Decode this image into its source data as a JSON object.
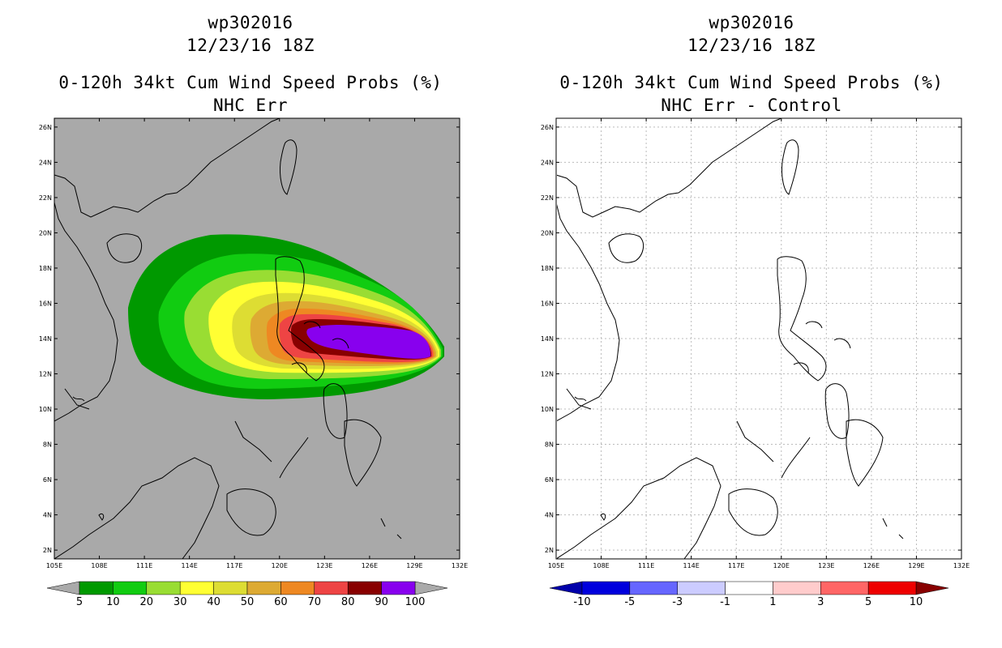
{
  "left": {
    "title_storm": "wp302016",
    "title_time": "12/23/16 18Z",
    "title_product": "0-120h 34kt Cum Wind Speed Probs (%)",
    "title_variant": "NHC Err",
    "colorbar": {
      "labels": [
        "5",
        "10",
        "20",
        "30",
        "40",
        "50",
        "60",
        "70",
        "80",
        "90",
        "100"
      ],
      "colors": [
        "#009900",
        "#11cc11",
        "#99dd33",
        "#ffff33",
        "#dddd33",
        "#ddaa33",
        "#ee8822",
        "#ee4444",
        "#880000",
        "#8800ee"
      ],
      "under_color": "#aaaaaa",
      "over_color": "#aaaaaa"
    },
    "background": "#a9a9a9"
  },
  "right": {
    "title_storm": "wp302016",
    "title_time": "12/23/16 18Z",
    "title_product": "0-120h 34kt Cum Wind Speed Probs (%)",
    "title_variant": "NHC Err - Control",
    "colorbar": {
      "labels": [
        "-10",
        "-5",
        "-3",
        "-1",
        "1",
        "3",
        "5",
        "10"
      ],
      "colors": [
        "#0000dd",
        "#6666ff",
        "#ccccff",
        "#ffffff",
        "#ffcccc",
        "#ff6666",
        "#ee0000"
      ],
      "under_color": "#0000aa",
      "over_color": "#880000"
    },
    "background": "#ffffff"
  },
  "axes": {
    "lon_labels": [
      "105E",
      "108E",
      "111E",
      "114E",
      "117E",
      "120E",
      "123E",
      "126E",
      "129E",
      "132E"
    ],
    "lat_labels": [
      "2N",
      "4N",
      "6N",
      "8N",
      "10N",
      "12N",
      "14N",
      "16N",
      "18N",
      "20N",
      "22N",
      "24N",
      "26N"
    ],
    "lon_min": 105,
    "lon_max": 132,
    "lat_min": 1.5,
    "lat_max": 26.5
  }
}
